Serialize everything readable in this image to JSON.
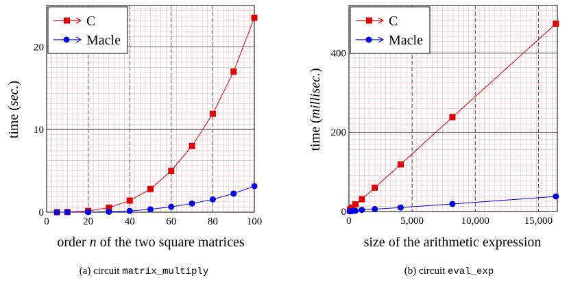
{
  "chart_data": [
    {
      "type": "line",
      "xlabel_parts": [
        "order ",
        "n",
        " of the two square matrices"
      ],
      "ylabel_parts": [
        "time (",
        "sec.",
        ")"
      ],
      "xlim": [
        0,
        100
      ],
      "ylim": [
        0,
        25
      ],
      "xticks": [
        "0",
        "20",
        "40",
        "60",
        "80",
        "100"
      ],
      "yticks": [
        "0",
        "10",
        "20"
      ],
      "xtick_values": [
        0,
        20,
        40,
        60,
        80,
        100
      ],
      "ytick_values": [
        0,
        10,
        20
      ],
      "grid": true,
      "legend_position": "top-left",
      "series": [
        {
          "name": "C",
          "color": "#dd0000",
          "marker": "square",
          "x": [
            5,
            10,
            20,
            30,
            40,
            50,
            60,
            70,
            80,
            90,
            100
          ],
          "y": [
            0.0,
            0.02,
            0.15,
            0.55,
            1.4,
            2.8,
            5.0,
            8.0,
            11.9,
            17.0,
            23.5
          ]
        },
        {
          "name": "Macle",
          "color": "#0000dd",
          "marker": "circle",
          "x": [
            5,
            10,
            20,
            30,
            40,
            50,
            60,
            70,
            80,
            90,
            100
          ],
          "y": [
            0.0,
            0.0,
            0.01,
            0.05,
            0.15,
            0.35,
            0.65,
            1.05,
            1.55,
            2.25,
            3.15
          ]
        }
      ],
      "caption_prefix": "(a) circuit ",
      "caption_code": "matrix_multiply"
    },
    {
      "type": "line",
      "xlabel_parts": [
        "size of the arithmetic expression",
        "",
        ""
      ],
      "ylabel_parts": [
        "time (",
        "millisec.",
        ")"
      ],
      "xlim": [
        0,
        16500
      ],
      "ylim": [
        0,
        520
      ],
      "xticks": [
        "0",
        "5,000",
        "10,000",
        "15,000"
      ],
      "yticks": [
        "0",
        "200",
        "400"
      ],
      "xtick_values": [
        0,
        5000,
        10000,
        15000
      ],
      "ytick_values": [
        0,
        200,
        400
      ],
      "grid": true,
      "legend_position": "top-left",
      "series": [
        {
          "name": "C",
          "color": "#dd0000",
          "marker": "square",
          "x": [
            64,
            128,
            256,
            512,
            1024,
            2048,
            4096,
            8192,
            16384
          ],
          "y": [
            3,
            6,
            10,
            18,
            31,
            60,
            119,
            238,
            474
          ]
        },
        {
          "name": "Macle",
          "color": "#0000dd",
          "marker": "circle",
          "x": [
            64,
            128,
            256,
            512,
            1024,
            2048,
            4096,
            8192,
            16384
          ],
          "y": [
            0.5,
            0.8,
            1.2,
            2,
            4,
            6,
            10,
            19,
            38
          ]
        }
      ],
      "caption_prefix": "(b) circuit ",
      "caption_code": "eval_exp"
    }
  ]
}
